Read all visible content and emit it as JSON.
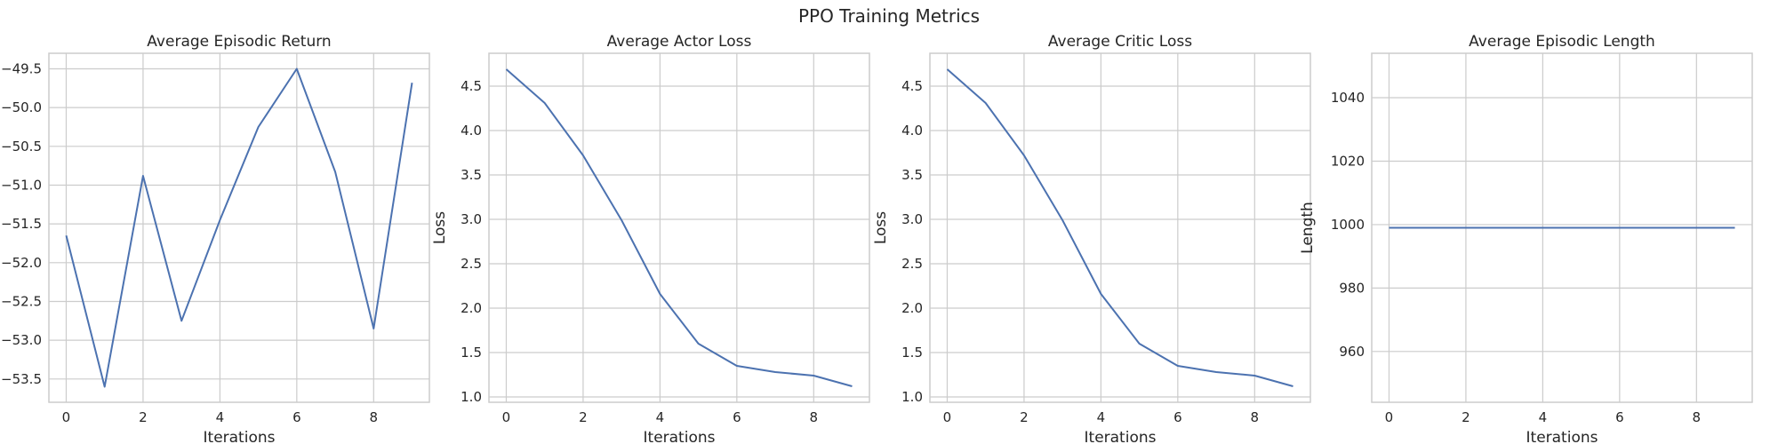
{
  "title": "PPO Training Metrics",
  "colors": {
    "series": "#4c72b0",
    "grid": "#cccccc",
    "text": "#262626",
    "background": "#ffffff"
  },
  "chart_data": [
    {
      "type": "line",
      "title": "Average Episodic Return",
      "xlabel": "Iterations",
      "ylabel": "",
      "x": [
        0,
        1,
        2,
        3,
        4,
        5,
        6,
        7,
        8,
        9
      ],
      "series": [
        {
          "values": [
            -51.65,
            -53.6,
            -50.88,
            -52.75,
            -51.45,
            -50.25,
            -49.5,
            -50.83,
            -52.85,
            -49.68
          ]
        }
      ],
      "xlim": [
        -0.45,
        9.45
      ],
      "ylim": [
        -53.8,
        -49.3
      ],
      "xticks": [
        0,
        2,
        4,
        6,
        8
      ],
      "yticks": [
        -53.5,
        -53.0,
        -52.5,
        -52.0,
        -51.5,
        -51.0,
        -50.5,
        -50.0,
        -49.5
      ],
      "ytick_labels": [
        "−53.5",
        "−53.0",
        "−52.5",
        "−52.0",
        "−51.5",
        "−51.0",
        "−50.5",
        "−50.0",
        "−49.5"
      ],
      "grid": true
    },
    {
      "type": "line",
      "title": "Average Actor Loss",
      "xlabel": "Iterations",
      "ylabel": "Loss",
      "x": [
        0,
        1,
        2,
        3,
        4,
        5,
        6,
        7,
        8,
        9
      ],
      "series": [
        {
          "values": [
            4.69,
            4.31,
            3.72,
            2.99,
            2.16,
            1.6,
            1.35,
            1.28,
            1.24,
            1.12
          ]
        }
      ],
      "xlim": [
        -0.45,
        9.45
      ],
      "ylim": [
        0.94,
        4.87
      ],
      "xticks": [
        0,
        2,
        4,
        6,
        8
      ],
      "yticks": [
        1.0,
        1.5,
        2.0,
        2.5,
        3.0,
        3.5,
        4.0,
        4.5
      ],
      "ytick_labels": [
        "1.0",
        "1.5",
        "2.0",
        "2.5",
        "3.0",
        "3.5",
        "4.0",
        "4.5"
      ],
      "grid": true
    },
    {
      "type": "line",
      "title": "Average Critic Loss",
      "xlabel": "Iterations",
      "ylabel": "Loss",
      "x": [
        0,
        1,
        2,
        3,
        4,
        5,
        6,
        7,
        8,
        9
      ],
      "series": [
        {
          "values": [
            4.69,
            4.31,
            3.72,
            2.99,
            2.16,
            1.6,
            1.35,
            1.28,
            1.24,
            1.12
          ]
        }
      ],
      "xlim": [
        -0.45,
        9.45
      ],
      "ylim": [
        0.94,
        4.87
      ],
      "xticks": [
        0,
        2,
        4,
        6,
        8
      ],
      "yticks": [
        1.0,
        1.5,
        2.0,
        2.5,
        3.0,
        3.5,
        4.0,
        4.5
      ],
      "ytick_labels": [
        "1.0",
        "1.5",
        "2.0",
        "2.5",
        "3.0",
        "3.5",
        "4.0",
        "4.5"
      ],
      "grid": true
    },
    {
      "type": "line",
      "title": "Average Episodic Length",
      "xlabel": "Iterations",
      "ylabel": "Length",
      "x": [
        0,
        1,
        2,
        3,
        4,
        5,
        6,
        7,
        8,
        9
      ],
      "series": [
        {
          "values": [
            999,
            999,
            999,
            999,
            999,
            999,
            999,
            999,
            999,
            999
          ]
        }
      ],
      "xlim": [
        -0.45,
        9.45
      ],
      "ylim": [
        944,
        1054
      ],
      "xticks": [
        0,
        2,
        4,
        6,
        8
      ],
      "yticks": [
        960,
        980,
        1000,
        1020,
        1040
      ],
      "ytick_labels": [
        "960",
        "980",
        "1000",
        "1020",
        "1040"
      ],
      "grid": true
    }
  ]
}
